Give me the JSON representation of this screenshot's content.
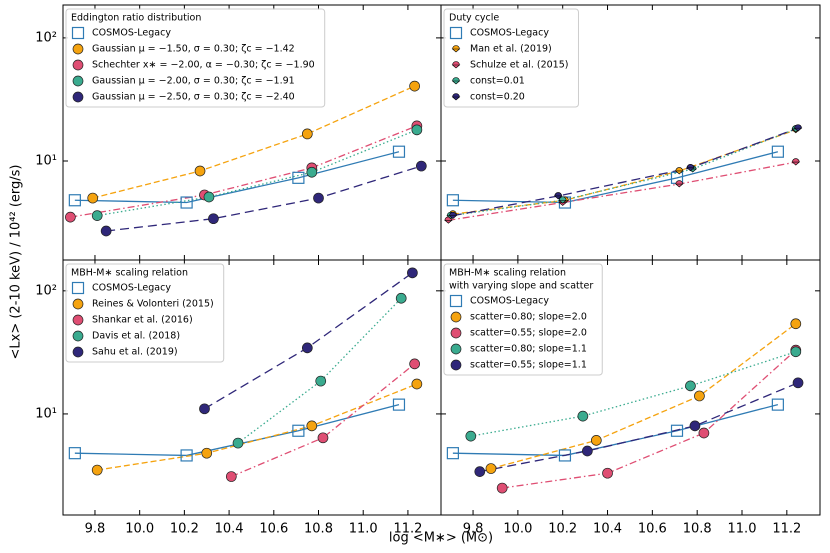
{
  "xlabel": "log <M∗> (M⊙)",
  "ylabel": "<Lx> (2-10 keV) / 10⁴² (erg/s)",
  "chart_data": [
    {
      "type": "line",
      "legend_title": [
        "Eddington ratio distribution"
      ],
      "log_y": true,
      "xlim": [
        9.657,
        11.348
      ],
      "ylim": [
        1.57,
        185
      ],
      "xticks": [
        9.8,
        {
          "value": 10,
          "label": "10.0"
        },
        10.2,
        10.4,
        10.6,
        10.8,
        {
          "value": 11,
          "label": "11.0"
        },
        11.2
      ],
      "yticks": [
        {
          "value": 10,
          "label": "10¹"
        },
        {
          "value": 100,
          "label": "10²"
        }
      ],
      "series": [
        {
          "name": "COSMOS-Legacy",
          "color": "#2f7bb4",
          "marker": "square",
          "linestyle": "solid",
          "x": [
            9.71,
            10.21,
            10.71,
            11.16
          ],
          "values": [
            4.8,
            4.6,
            7.3,
            11.9
          ]
        },
        {
          "name": "Gaussian μ = −1.50, σ = 0.30; ζc = −1.42",
          "color": "#f5a30f",
          "marker": "circle",
          "linestyle": "dashed",
          "x": [
            9.79,
            10.27,
            10.75,
            11.23
          ],
          "values": [
            5.0,
            8.3,
            16.6,
            40.6
          ]
        },
        {
          "name": "Schechter x∗ = −2.00, α = −0.30; ζc = −1.90",
          "color": "#df4e73",
          "marker": "circle",
          "linestyle": "dashdot",
          "x": [
            9.69,
            10.29,
            10.77,
            11.24
          ],
          "values": [
            3.5,
            5.3,
            8.8,
            19.3
          ]
        },
        {
          "name": "Gaussian μ = −2.00, σ = 0.30; ζc = −1.91",
          "color": "#3aab8f",
          "marker": "circle",
          "linestyle": "dotted",
          "x": [
            9.81,
            10.31,
            10.77,
            11.24
          ],
          "values": [
            3.6,
            5.1,
            8.1,
            17.9
          ]
        },
        {
          "name": "Gaussian μ = −2.50, σ = 0.30; ζc = −2.40",
          "color": "#2f2779",
          "marker": "circle",
          "linestyle": "longdash",
          "x": [
            9.85,
            10.33,
            10.8,
            11.26
          ],
          "values": [
            2.7,
            3.4,
            5.0,
            9.1
          ]
        }
      ]
    },
    {
      "type": "line",
      "legend_title": [
        "Duty cycle"
      ],
      "log_y": true,
      "xlim": [
        9.657,
        11.348
      ],
      "ylim": [
        1.57,
        185
      ],
      "xticks": [
        9.8,
        {
          "value": 10,
          "label": "10.0"
        },
        10.2,
        10.4,
        10.6,
        10.8,
        {
          "value": 11,
          "label": "11.0"
        },
        11.2
      ],
      "yticks": [
        {
          "value": 10,
          "label": "10¹"
        },
        {
          "value": 100,
          "label": "10²"
        }
      ],
      "series": [
        {
          "name": "COSMOS-Legacy",
          "color": "#2f7bb4",
          "marker": "square",
          "linestyle": "solid",
          "x": [
            9.71,
            10.21,
            10.71,
            11.16
          ],
          "values": [
            4.8,
            4.6,
            7.3,
            11.9
          ]
        },
        {
          "name": "Man et al. (2019)",
          "color": "#f5a30f",
          "marker": "half",
          "linestyle": "dashed",
          "x": [
            9.71,
            10.21,
            10.72,
            11.24
          ],
          "values": [
            3.7,
            4.8,
            8.3,
            17.9
          ]
        },
        {
          "name": "Schulze et al. (2015)",
          "color": "#df4e73",
          "marker": "half",
          "linestyle": "dashdot",
          "x": [
            9.69,
            10.2,
            10.72,
            11.24
          ],
          "values": [
            3.3,
            4.6,
            6.5,
            9.8
          ]
        },
        {
          "name": "const=0.01",
          "color": "#3aab8f",
          "marker": "half",
          "linestyle": "dotted",
          "x": [
            9.7,
            10.2,
            10.78,
            11.24
          ],
          "values": [
            3.6,
            4.8,
            8.6,
            18.2
          ]
        },
        {
          "name": "const=0.20",
          "color": "#2f2779",
          "marker": "half",
          "linestyle": "longdash",
          "x": [
            9.71,
            10.18,
            10.77,
            11.25
          ],
          "values": [
            3.6,
            5.2,
            8.8,
            18.5
          ]
        }
      ]
    },
    {
      "type": "line",
      "legend_title": [
        "MBH-M∗ scaling relation"
      ],
      "log_y": true,
      "xlim": [
        9.657,
        11.348
      ],
      "ylim": [
        1.51,
        178
      ],
      "xticks": [
        9.8,
        {
          "value": 10,
          "label": "10.0"
        },
        10.2,
        10.4,
        10.6,
        10.8,
        {
          "value": 11,
          "label": "11.0"
        },
        11.2
      ],
      "yticks": [
        {
          "value": 10,
          "label": "10¹"
        },
        {
          "value": 100,
          "label": "10²"
        }
      ],
      "series": [
        {
          "name": "COSMOS-Legacy",
          "color": "#2f7bb4",
          "marker": "square",
          "linestyle": "solid",
          "x": [
            9.71,
            10.21,
            10.71,
            11.16
          ],
          "values": [
            4.8,
            4.6,
            7.3,
            11.9
          ]
        },
        {
          "name": "Reines & Volonteri (2015)",
          "color": "#f5a30f",
          "marker": "circle",
          "linestyle": "dashed",
          "x": [
            9.81,
            10.3,
            10.77,
            11.24
          ],
          "values": [
            3.5,
            4.8,
            8.0,
            17.5
          ]
        },
        {
          "name": "Shankar et al. (2016)",
          "color": "#df4e73",
          "marker": "circle",
          "linestyle": "dashdot",
          "x": [
            10.41,
            10.82,
            11.23
          ],
          "values": [
            3.1,
            6.4,
            25.5
          ]
        },
        {
          "name": "Davis et al. (2018)",
          "color": "#3aab8f",
          "marker": "circle",
          "linestyle": "dotted",
          "x": [
            10.44,
            10.81,
            11.17
          ],
          "values": [
            5.8,
            18.5,
            87
          ]
        },
        {
          "name": "Sahu et al. (2019)",
          "color": "#2f2779",
          "marker": "circle",
          "linestyle": "longdash",
          "x": [
            10.29,
            10.75,
            11.22
          ],
          "values": [
            11.0,
            34.4,
            140
          ]
        }
      ]
    },
    {
      "type": "line",
      "legend_title": [
        "MBH-M∗ scaling relation",
        "with varying slope and scatter"
      ],
      "log_y": true,
      "xlim": [
        9.657,
        11.348
      ],
      "ylim": [
        1.51,
        178
      ],
      "xticks": [
        9.8,
        {
          "value": 10,
          "label": "10.0"
        },
        10.2,
        10.4,
        10.6,
        10.8,
        {
          "value": 11,
          "label": "11.0"
        },
        11.2
      ],
      "yticks": [
        {
          "value": 10,
          "label": "10¹"
        },
        {
          "value": 100,
          "label": "10²"
        }
      ],
      "series": [
        {
          "name": "COSMOS-Legacy",
          "color": "#2f7bb4",
          "marker": "square",
          "linestyle": "solid",
          "x": [
            9.71,
            10.21,
            10.71,
            11.16
          ],
          "values": [
            4.8,
            4.6,
            7.3,
            11.9
          ]
        },
        {
          "name": "scatter=0.80; slope=2.0",
          "color": "#f5a30f",
          "marker": "circle",
          "linestyle": "dashed",
          "x": [
            9.88,
            10.35,
            10.81,
            11.24
          ],
          "values": [
            3.6,
            6.1,
            14,
            54
          ]
        },
        {
          "name": "scatter=0.55; slope=2.0",
          "color": "#df4e73",
          "marker": "circle",
          "linestyle": "dashdot",
          "x": [
            9.93,
            10.4,
            10.83,
            11.24
          ],
          "values": [
            2.5,
            3.3,
            7.0,
            33
          ]
        },
        {
          "name": "scatter=0.80; slope=1.1",
          "color": "#3aab8f",
          "marker": "circle",
          "linestyle": "dotted",
          "x": [
            9.79,
            10.29,
            10.77,
            11.24
          ],
          "values": [
            6.6,
            9.6,
            16.9,
            32
          ]
        },
        {
          "name": "scatter=0.55; slope=1.1",
          "color": "#2f2779",
          "marker": "circle",
          "linestyle": "longdash",
          "x": [
            9.83,
            10.31,
            10.79,
            11.25
          ],
          "values": [
            3.4,
            5.0,
            8.0,
            17.9
          ]
        }
      ]
    }
  ]
}
